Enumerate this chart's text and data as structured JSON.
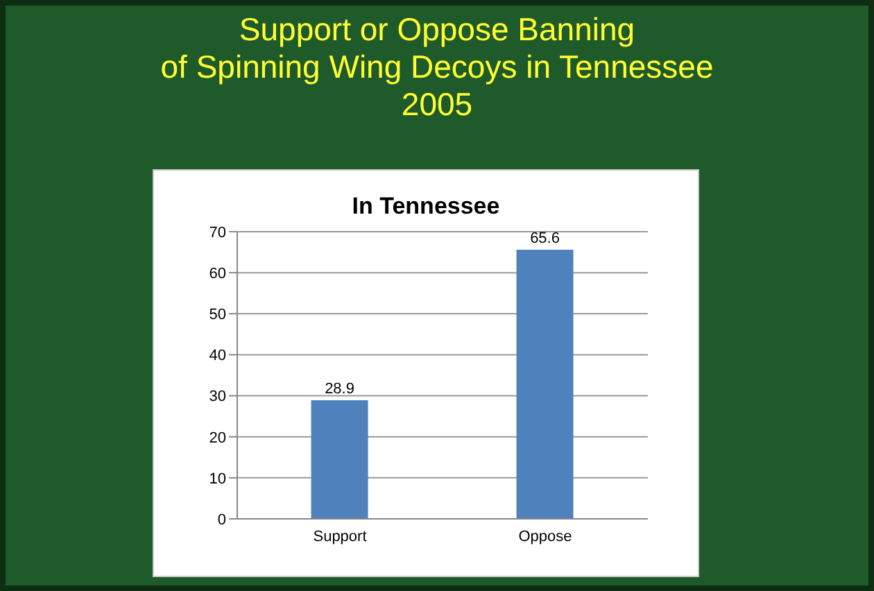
{
  "chart_data": {
    "type": "bar",
    "title": "Support or Oppose Banning\nof Spinning Wing Decoys in Tennessee\n2005",
    "subtitle": "In Tennessee",
    "categories": [
      "Support",
      "Oppose"
    ],
    "values": [
      28.9,
      65.6
    ],
    "color": "#4f81bd",
    "ylim": [
      0,
      70
    ],
    "yticks": [
      0,
      10,
      20,
      30,
      40,
      50,
      60,
      70
    ],
    "grid": "y",
    "data_labels": true
  }
}
